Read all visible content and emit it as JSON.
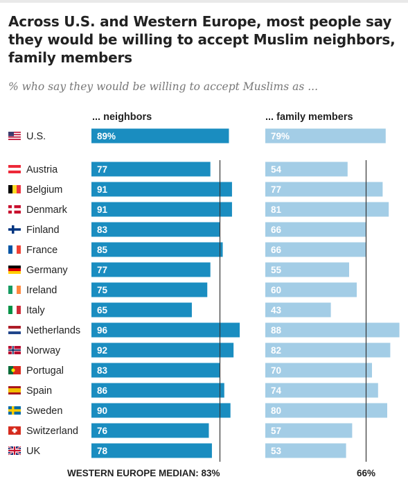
{
  "title_lines": [
    "Across U.S. and Western Europe, most people say",
    "they would be willing to accept Muslim neighbors,",
    "family members"
  ],
  "subtitle": "% who say they would be willing to accept Muslims as ...",
  "footer": {
    "median_label": "WESTERN EUROPE MEDIAN: 83%",
    "median2_label": "66%"
  },
  "colors": {
    "neighbors": "#1a8dc0",
    "family": "#a3cde6",
    "median_line": "#333333",
    "text": "#222222"
  },
  "chart_data": {
    "type": "bar",
    "orientation": "horizontal",
    "categories": [
      "U.S.",
      "Austria",
      "Belgium",
      "Denmark",
      "Finland",
      "France",
      "Germany",
      "Ireland",
      "Italy",
      "Netherlands",
      "Norway",
      "Portugal",
      "Spain",
      "Sweden",
      "Switzerland",
      "UK"
    ],
    "flags": [
      "us-flag-icon",
      "austria-flag-icon",
      "belgium-flag-icon",
      "denmark-flag-icon",
      "finland-flag-icon",
      "france-flag-icon",
      "germany-flag-icon",
      "ireland-flag-icon",
      "italy-flag-icon",
      "netherlands-flag-icon",
      "norway-flag-icon",
      "portugal-flag-icon",
      "spain-flag-icon",
      "sweden-flag-icon",
      "switzerland-flag-icon",
      "uk-flag-icon"
    ],
    "series": [
      {
        "name": "... neighbors",
        "values": [
          89,
          77,
          91,
          91,
          83,
          85,
          77,
          75,
          65,
          96,
          92,
          83,
          86,
          90,
          76,
          78
        ],
        "labels": [
          "89%",
          "77",
          "91",
          "91",
          "83",
          "85",
          "77",
          "75",
          "65",
          "96",
          "92",
          "83",
          "86",
          "90",
          "76",
          "78"
        ],
        "median": 83
      },
      {
        "name": "... family members",
        "values": [
          79,
          54,
          77,
          81,
          66,
          66,
          55,
          60,
          43,
          88,
          82,
          70,
          74,
          80,
          57,
          53
        ],
        "labels": [
          "79%",
          "54",
          "77",
          "81",
          "66",
          "66",
          "55",
          "60",
          "43",
          "88",
          "82",
          "70",
          "74",
          "80",
          "57",
          "53"
        ],
        "median": 66
      }
    ],
    "xlim": [
      0,
      100
    ]
  }
}
